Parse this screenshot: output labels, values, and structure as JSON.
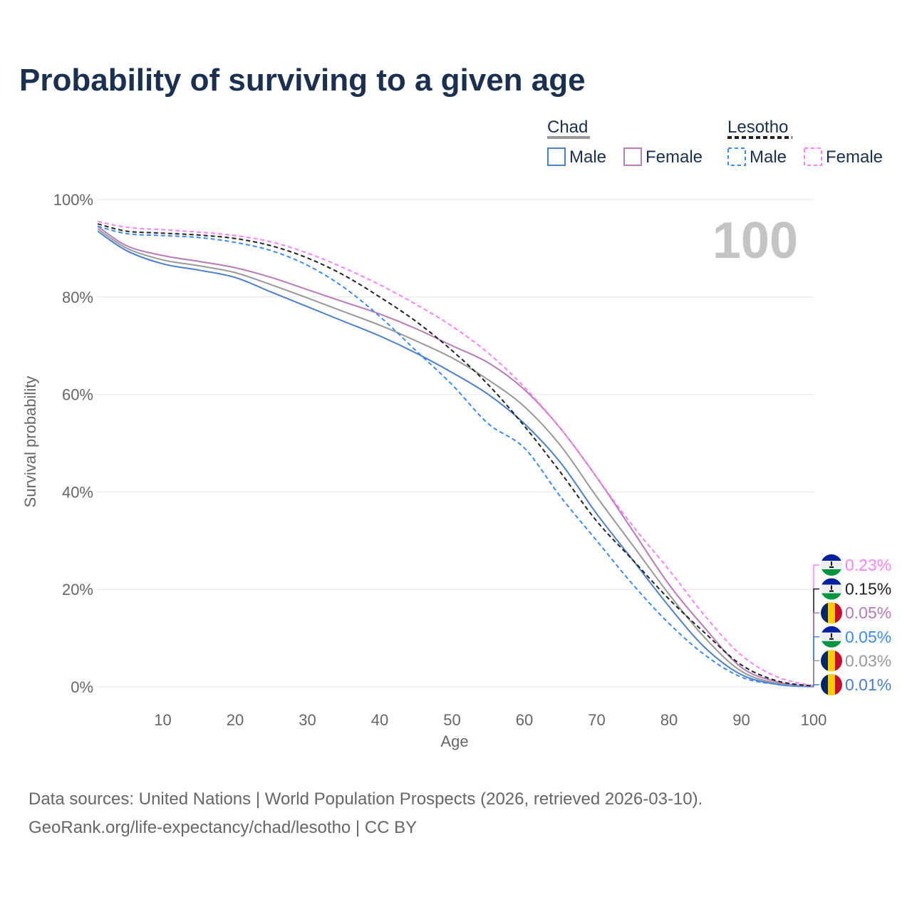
{
  "title": "Probability of surviving to a given age",
  "source_line1": "Data sources: United Nations | World Population Prospects (2026, retrieved 2026-03-10).",
  "source_line2": "GeoRank.org/life-expectancy/chad/lesotho | CC BY",
  "chart_data": {
    "type": "line",
    "xlabel": "Age",
    "ylabel": "Survival probability",
    "xlim": [
      0,
      100
    ],
    "ylim": [
      0,
      100
    ],
    "xticks": [
      10,
      20,
      30,
      40,
      50,
      60,
      70,
      80,
      90,
      100
    ],
    "yticks": [
      0,
      20,
      40,
      60,
      80,
      100
    ],
    "ytick_labels": [
      "0%",
      "20%",
      "40%",
      "60%",
      "80%",
      "100%"
    ],
    "grid": true,
    "age_indicator": "100",
    "legend": {
      "groups": [
        {
          "name": "Chad",
          "items": [
            "Male",
            "Female"
          ]
        },
        {
          "name": "Lesotho",
          "items": [
            "Male",
            "Female"
          ]
        }
      ],
      "placement": "top-right"
    },
    "x": [
      1,
      5,
      10,
      15,
      20,
      25,
      30,
      35,
      40,
      45,
      50,
      55,
      60,
      65,
      70,
      75,
      80,
      85,
      90,
      95,
      100
    ],
    "series": [
      {
        "name": "Chad Male",
        "country": "Chad",
        "color": "#4a7fd0",
        "dash": false,
        "end_label": "0.01%",
        "values": [
          93.5,
          89.5,
          86.8,
          85.5,
          84,
          81,
          78,
          75,
          72,
          68.5,
          64.5,
          60,
          54,
          46,
          35.5,
          26,
          16.5,
          8,
          2.5,
          0.5,
          0.01
        ]
      },
      {
        "name": "Chad Female",
        "country": "Chad",
        "color": "#b77bb8",
        "dash": false,
        "end_label": "0.05%",
        "values": [
          94.5,
          90.5,
          88.5,
          87.3,
          86,
          84,
          81.5,
          79,
          76.5,
          73.5,
          70,
          66.5,
          61,
          53,
          43,
          32,
          21,
          12,
          4,
          1,
          0.05
        ]
      },
      {
        "name": "Chad Total",
        "country": "Chad",
        "color": "#999999",
        "dash": false,
        "end_label": "0.03%",
        "values": [
          94,
          90,
          87.6,
          86.4,
          85,
          82.5,
          79.8,
          77,
          74.2,
          71,
          67.5,
          63,
          57.5,
          49.5,
          39,
          29,
          19,
          10,
          3.2,
          0.7,
          0.03
        ]
      },
      {
        "name": "Lesotho Male",
        "country": "Lesotho",
        "color": "#3a8aff",
        "dash": true,
        "end_label": "0.05%",
        "values": [
          94.5,
          93,
          92.6,
          92.2,
          91.2,
          89.5,
          86.5,
          82,
          76,
          69,
          62,
          54,
          49,
          39,
          30,
          21,
          13,
          6.5,
          2,
          0.5,
          0.05
        ]
      },
      {
        "name": "Lesotho Female",
        "country": "Lesotho",
        "color": "#ff80ff",
        "dash": true,
        "end_label": "0.23%",
        "values": [
          95.5,
          94.3,
          93.8,
          93.3,
          92.6,
          91.3,
          89,
          86,
          82.5,
          78.5,
          74,
          68.5,
          61.5,
          53,
          43,
          33,
          24,
          14.5,
          6.5,
          2,
          0.23
        ]
      },
      {
        "name": "Lesotho Total",
        "country": "Lesotho",
        "color": "#222222",
        "dash": true,
        "end_label": "0.15%",
        "values": [
          95,
          93.5,
          93.1,
          92.7,
          92,
          90.5,
          88,
          84.5,
          80,
          75,
          69,
          62,
          53.5,
          44,
          34,
          26,
          18,
          11,
          4.5,
          1.2,
          0.15
        ]
      }
    ],
    "end_label_order": [
      4,
      5,
      1,
      3,
      2,
      0
    ]
  }
}
